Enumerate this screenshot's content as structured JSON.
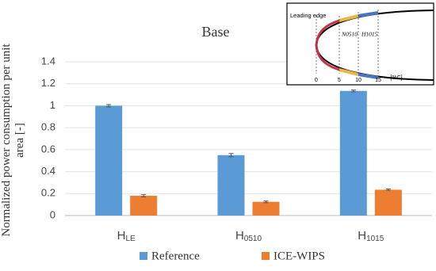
{
  "chart_data": {
    "type": "bar",
    "title": "Base",
    "ylabel": "Normalized power consumption per unit area [-]",
    "categories": [
      "HLE",
      "H0510",
      "H1015"
    ],
    "series": [
      {
        "name": "Reference",
        "color": "#5b9bd5",
        "values": [
          1.0,
          0.55,
          1.135
        ],
        "errors": [
          0.01,
          0.015,
          0.008
        ]
      },
      {
        "name": "ICE-WIPS",
        "color": "#ed7d31",
        "values": [
          0.18,
          0.125,
          0.235
        ],
        "errors": [
          0.01,
          0.008,
          0.007
        ]
      }
    ],
    "ylim": [
      0,
      1.4
    ],
    "yticks": [
      0,
      {
        "value": 0.2,
        "label": "0.2"
      },
      {
        "value": 0.4,
        "label": "0.4"
      },
      {
        "value": 0.6,
        "label": "0.6"
      },
      {
        "value": 0.8,
        "label": "0.8"
      },
      1,
      {
        "value": 1.2,
        "label": "1.2"
      },
      {
        "value": 1.4,
        "label": "1.4"
      }
    ],
    "grid": true,
    "legend": "bottom"
  },
  "inset": {
    "label": "Leading edge",
    "regions": [
      "N0510",
      "H1015"
    ],
    "ticks": [
      "0",
      "5",
      "10",
      "15"
    ],
    "unit": "[%C]"
  }
}
